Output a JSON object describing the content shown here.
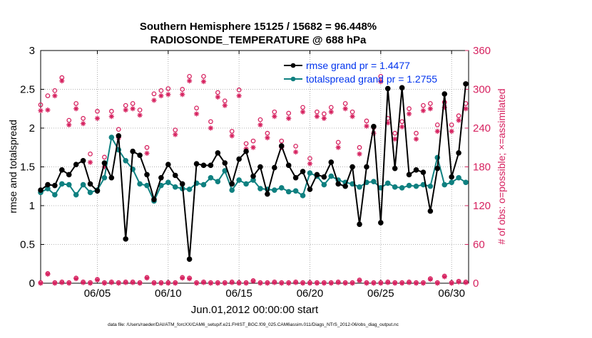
{
  "colors": {
    "rmse": "#000000",
    "spread": "#0f8080",
    "obs": "#d6215f",
    "legend_text": "#0033ee",
    "axis": "#000000"
  },
  "chart_data": {
    "type": "line",
    "title": "Southern Hemisphere 15125 / 15682 = 96.448%",
    "subtitle": "RADIOSONDE_TEMPERATURE @ 688 hPa",
    "xlabel": "Jun.01,2012 00:00:00 start",
    "ylabel": "rmse and totalspread",
    "ylabel_right": "# of obs: o=possible; ×=assimilated",
    "footer": "data file: /Users/raeder/DAI/ATM_forcXX/CAM6_setup/f.e21.FHIST_BGC.f09_025.CAM6assim.011/Diags_NTrS_2012-06/obs_diag_output.nc",
    "xlim": [
      1,
      31.2
    ],
    "ylim": [
      0,
      3
    ],
    "ylim_right": [
      0,
      360
    ],
    "x_ticks": [
      5,
      10,
      15,
      20,
      25,
      30
    ],
    "x_tick_labels": [
      "06/05",
      "06/10",
      "06/15",
      "06/20",
      "06/25",
      "06/30"
    ],
    "y_ticks": [
      "0",
      "0.5",
      "1",
      "1.5",
      "2",
      "2.5",
      "3"
    ],
    "y_ticks_right": [
      "0",
      "60",
      "120",
      "180",
      "240",
      "300",
      "360"
    ],
    "legend": [
      "rmse grand pr = 1.4477",
      "totalspread grand pr = 1.2755"
    ],
    "legend_position": "top-right",
    "x": [
      1.0,
      1.5,
      2.0,
      2.5,
      3.0,
      3.5,
      4.0,
      4.5,
      5.0,
      5.5,
      6.0,
      6.5,
      7.0,
      7.5,
      8.0,
      8.5,
      9.0,
      9.5,
      10.0,
      10.5,
      11.0,
      11.5,
      12.0,
      12.5,
      13.0,
      13.5,
      14.0,
      14.5,
      15.0,
      15.5,
      16.0,
      16.5,
      17.0,
      17.5,
      18.0,
      18.5,
      19.0,
      19.5,
      20.0,
      20.5,
      21.0,
      21.5,
      22.0,
      22.5,
      23.0,
      23.5,
      24.0,
      24.5,
      25.0,
      25.5,
      26.0,
      26.5,
      27.0,
      27.5,
      28.0,
      28.5,
      29.0,
      29.5,
      30.0,
      30.5,
      31.0
    ],
    "series": [
      {
        "name": "rmse",
        "values": [
          1.2,
          1.27,
          1.26,
          1.46,
          1.4,
          1.53,
          1.58,
          1.28,
          1.19,
          1.55,
          1.36,
          1.9,
          0.57,
          1.7,
          1.65,
          1.4,
          1.08,
          1.36,
          1.53,
          1.39,
          1.28,
          0.31,
          1.54,
          1.52,
          1.52,
          1.68,
          1.55,
          1.28,
          1.6,
          1.7,
          1.38,
          1.5,
          1.15,
          1.49,
          1.77,
          1.52,
          1.36,
          1.44,
          1.21,
          1.4,
          1.37,
          1.56,
          1.28,
          1.25,
          1.5,
          0.76,
          1.5,
          2.02,
          0.78,
          2.51,
          1.48,
          2.52,
          1.4,
          1.46,
          1.43,
          0.93,
          1.48,
          2.44,
          1.37,
          1.68,
          2.57
        ]
      },
      {
        "name": "totalspread",
        "values": [
          1.17,
          1.22,
          1.14,
          1.28,
          1.27,
          1.14,
          1.27,
          1.17,
          1.2,
          1.36,
          1.88,
          1.72,
          1.58,
          1.47,
          1.28,
          1.26,
          1.06,
          1.26,
          1.3,
          1.24,
          1.22,
          1.21,
          1.29,
          1.27,
          1.36,
          1.31,
          1.45,
          1.2,
          1.33,
          1.28,
          1.33,
          1.22,
          1.21,
          1.2,
          1.23,
          1.18,
          1.19,
          1.13,
          1.42,
          1.38,
          1.27,
          1.38,
          1.33,
          1.3,
          1.28,
          1.24,
          1.3,
          1.31,
          1.23,
          1.29,
          1.24,
          1.23,
          1.26,
          1.25,
          1.27,
          1.25,
          1.62,
          1.27,
          1.3,
          1.36,
          1.3
        ]
      },
      {
        "name": "obs possible",
        "values": [
          276,
          290,
          298,
          318,
          252,
          278,
          255,
          200,
          266,
          195,
          266,
          238,
          275,
          278,
          268,
          210,
          293,
          298,
          301,
          237,
          300,
          320,
          271,
          320,
          250,
          295,
          282,
          235,
          299,
          216,
          220,
          253,
          232,
          265,
          220,
          263,
          212,
          272,
          193,
          265,
          262,
          272,
          218,
          278,
          265,
          210,
          251,
          241,
          320,
          255,
          232,
          250,
          270,
          232,
          275,
          278,
          245,
          280,
          245,
          259,
          278
        ]
      },
      {
        "name": "obs assimilated",
        "values": [
          267,
          268,
          290,
          313,
          245,
          270,
          247,
          187,
          255,
          180,
          258,
          225,
          268,
          270,
          260,
          201,
          283,
          290,
          292,
          230,
          292,
          313,
          262,
          312,
          240,
          288,
          275,
          228,
          290,
          208,
          210,
          245,
          225,
          258,
          210,
          255,
          203,
          265,
          185,
          258,
          255,
          265,
          210,
          270,
          258,
          200,
          243,
          232,
          312,
          248,
          223,
          242,
          262,
          223,
          267,
          270,
          235,
          272,
          235,
          252,
          270
        ]
      },
      {
        "name": "obs possible (low)",
        "values": [
          1,
          15,
          1,
          2,
          1,
          8,
          2,
          1,
          6,
          1,
          2,
          1,
          2,
          2,
          1,
          9,
          1,
          1,
          1,
          1,
          9,
          8,
          1,
          2,
          1,
          1,
          1,
          2,
          1,
          1,
          4,
          1,
          1,
          2,
          1,
          1,
          2,
          1,
          1,
          1,
          1,
          1,
          2,
          1,
          1,
          5,
          1,
          1,
          1,
          2,
          1,
          1,
          2,
          1,
          1,
          7,
          1,
          11,
          1,
          3,
          2
        ]
      }
    ]
  }
}
